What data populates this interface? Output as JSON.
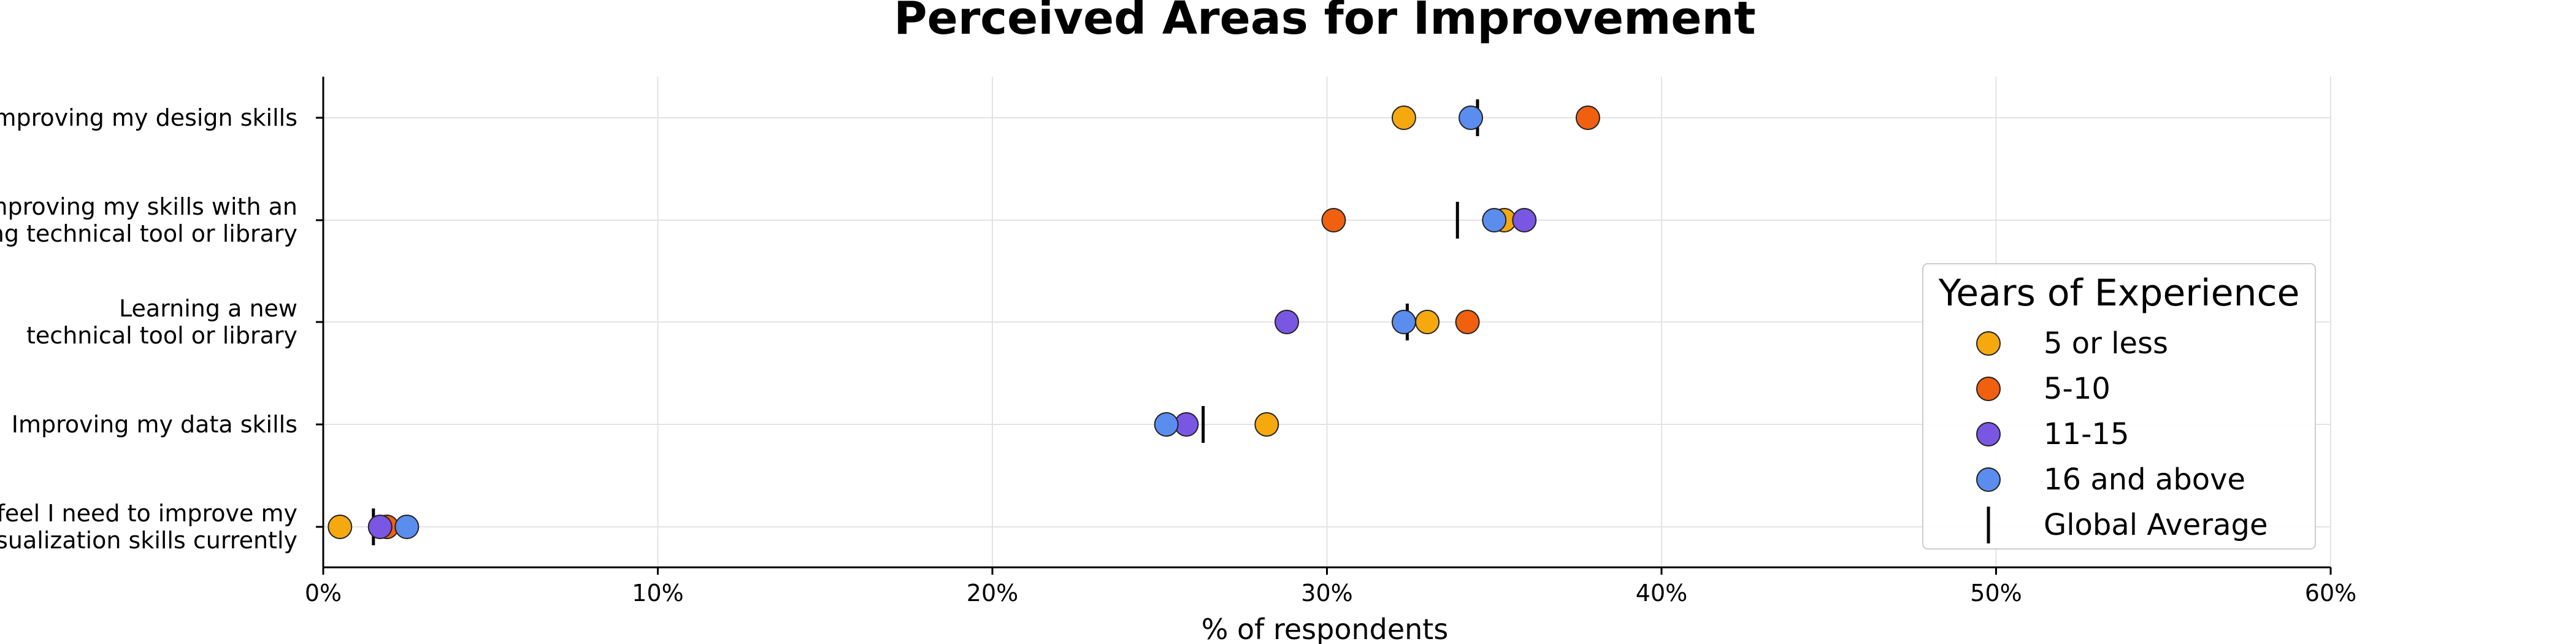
{
  "chart_data": {
    "type": "scatter",
    "title": "Perceived Areas for Improvement",
    "xlabel": "% of respondents",
    "ylabel": "",
    "xlim": [
      0,
      60
    ],
    "x_ticks": [
      0,
      10,
      20,
      30,
      40,
      50,
      60
    ],
    "x_tick_labels": [
      "0%",
      "10%",
      "20%",
      "30%",
      "40%",
      "50%",
      "60%"
    ],
    "grid": true,
    "categories": [
      [
        "Improving my design skills"
      ],
      [
        "Improving my skills with an",
        "existing technical tool or library"
      ],
      [
        "Learning a new",
        "technical tool or library"
      ],
      [
        "Improving my data skills"
      ],
      [
        "I don't feel I need to improve my",
        "data visualization skills currently"
      ]
    ],
    "series": [
      {
        "name": "5 or less",
        "color": "#F5A90F",
        "values": [
          32.3,
          35.3,
          33.0,
          28.2,
          0.5
        ]
      },
      {
        "name": "5-10",
        "color": "#F0600F",
        "values": [
          37.8,
          30.2,
          34.2,
          null,
          1.9
        ]
      },
      {
        "name": "11-15",
        "color": "#7A57E3",
        "values": [
          null,
          35.9,
          28.8,
          25.8,
          1.7
        ]
      },
      {
        "name": "16 and above",
        "color": "#5B8DEF",
        "values": [
          34.3,
          35.0,
          32.3,
          25.2,
          2.5
        ]
      }
    ],
    "global_average": {
      "name": "Global Average",
      "values": [
        34.5,
        33.9,
        32.4,
        26.3,
        1.5
      ]
    },
    "legend": {
      "title": "Years of Experience",
      "placement": "right"
    }
  }
}
